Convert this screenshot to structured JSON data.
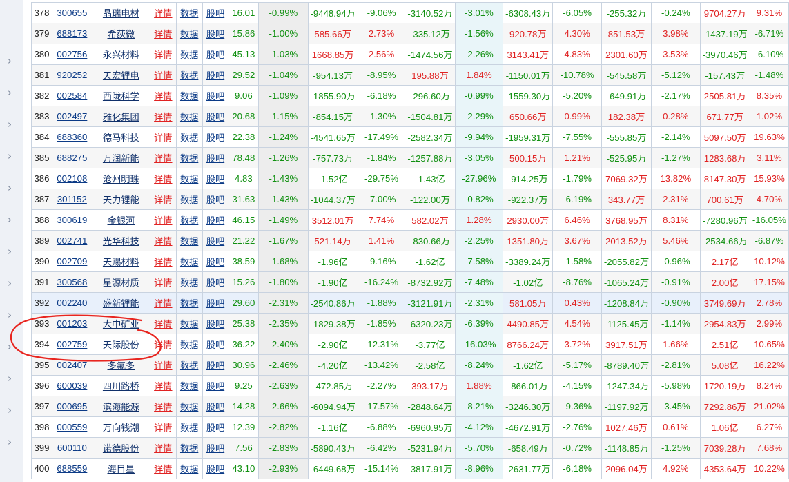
{
  "table": {
    "links": {
      "detail": "详情",
      "data": "数据",
      "forum": "股吧"
    },
    "rows": [
      {
        "rank": "378",
        "code": "300655",
        "name": "晶瑞电材",
        "price": "16.01",
        "chg": "-0.99%",
        "f1": "-9448.94万",
        "p1": "-9.06%",
        "f2": "-3140.52万",
        "p2": "-3.01%",
        "f3": "-6308.43万",
        "p3": "-6.05%",
        "f4": "-255.32万",
        "p4": "-0.24%",
        "f5": "9704.27万",
        "p5": "9.31%"
      },
      {
        "rank": "379",
        "code": "688173",
        "name": "希荻微",
        "price": "15.86",
        "chg": "-1.00%",
        "f1": "585.66万",
        "p1": "2.73%",
        "f2": "-335.12万",
        "p2": "-1.56%",
        "f3": "920.78万",
        "p3": "4.30%",
        "f4": "851.53万",
        "p4": "3.98%",
        "f5": "-1437.19万",
        "p5": "-6.71%"
      },
      {
        "rank": "380",
        "code": "002756",
        "name": "永兴材料",
        "price": "45.13",
        "chg": "-1.03%",
        "f1": "1668.85万",
        "p1": "2.56%",
        "f2": "-1474.56万",
        "p2": "-2.26%",
        "f3": "3143.41万",
        "p3": "4.83%",
        "f4": "2301.60万",
        "p4": "3.53%",
        "f5": "-3970.46万",
        "p5": "-6.10%"
      },
      {
        "rank": "381",
        "code": "920252",
        "name": "天宏锂电",
        "price": "29.52",
        "chg": "-1.04%",
        "f1": "-954.13万",
        "p1": "-8.95%",
        "f2": "195.88万",
        "p2": "1.84%",
        "f3": "-1150.01万",
        "p3": "-10.78%",
        "f4": "-545.58万",
        "p4": "-5.12%",
        "f5": "-157.43万",
        "p5": "-1.48%"
      },
      {
        "rank": "382",
        "code": "002584",
        "name": "西陇科学",
        "price": "9.06",
        "chg": "-1.09%",
        "f1": "-1855.90万",
        "p1": "-6.18%",
        "f2": "-296.60万",
        "p2": "-0.99%",
        "f3": "-1559.30万",
        "p3": "-5.20%",
        "f4": "-649.91万",
        "p4": "-2.17%",
        "f5": "2505.81万",
        "p5": "8.35%"
      },
      {
        "rank": "383",
        "code": "002497",
        "name": "雅化集团",
        "price": "20.68",
        "chg": "-1.15%",
        "f1": "-854.15万",
        "p1": "-1.30%",
        "f2": "-1504.81万",
        "p2": "-2.29%",
        "f3": "650.66万",
        "p3": "0.99%",
        "f4": "182.38万",
        "p4": "0.28%",
        "f5": "671.77万",
        "p5": "1.02%"
      },
      {
        "rank": "384",
        "code": "688360",
        "name": "德马科技",
        "price": "22.38",
        "chg": "-1.24%",
        "f1": "-4541.65万",
        "p1": "-17.49%",
        "f2": "-2582.34万",
        "p2": "-9.94%",
        "f3": "-1959.31万",
        "p3": "-7.55%",
        "f4": "-555.85万",
        "p4": "-2.14%",
        "f5": "5097.50万",
        "p5": "19.63%"
      },
      {
        "rank": "385",
        "code": "688275",
        "name": "万润新能",
        "price": "78.48",
        "chg": "-1.26%",
        "f1": "-757.73万",
        "p1": "-1.84%",
        "f2": "-1257.88万",
        "p2": "-3.05%",
        "f3": "500.15万",
        "p3": "1.21%",
        "f4": "-525.95万",
        "p4": "-1.27%",
        "f5": "1283.68万",
        "p5": "3.11%"
      },
      {
        "rank": "386",
        "code": "002108",
        "name": "沧州明珠",
        "price": "4.83",
        "chg": "-1.43%",
        "f1": "-1.52亿",
        "p1": "-29.75%",
        "f2": "-1.43亿",
        "p2": "-27.96%",
        "f3": "-914.25万",
        "p3": "-1.79%",
        "f4": "7069.32万",
        "p4": "13.82%",
        "f5": "8147.30万",
        "p5": "15.93%"
      },
      {
        "rank": "387",
        "code": "301152",
        "name": "天力锂能",
        "price": "31.63",
        "chg": "-1.43%",
        "f1": "-1044.37万",
        "p1": "-7.00%",
        "f2": "-122.00万",
        "p2": "-0.82%",
        "f3": "-922.37万",
        "p3": "-6.19%",
        "f4": "343.77万",
        "p4": "2.31%",
        "f5": "700.61万",
        "p5": "4.70%"
      },
      {
        "rank": "388",
        "code": "300619",
        "name": "金银河",
        "price": "46.15",
        "chg": "-1.49%",
        "f1": "3512.01万",
        "p1": "7.74%",
        "f2": "582.02万",
        "p2": "1.28%",
        "f3": "2930.00万",
        "p3": "6.46%",
        "f4": "3768.95万",
        "p4": "8.31%",
        "f5": "-7280.96万",
        "p5": "-16.05%"
      },
      {
        "rank": "389",
        "code": "002741",
        "name": "光华科技",
        "price": "21.22",
        "chg": "-1.67%",
        "f1": "521.14万",
        "p1": "1.41%",
        "f2": "-830.66万",
        "p2": "-2.25%",
        "f3": "1351.80万",
        "p3": "3.67%",
        "f4": "2013.52万",
        "p4": "5.46%",
        "f5": "-2534.66万",
        "p5": "-6.87%"
      },
      {
        "rank": "390",
        "code": "002709",
        "name": "天赐材料",
        "price": "38.59",
        "chg": "-1.68%",
        "f1": "-1.96亿",
        "p1": "-9.16%",
        "f2": "-1.62亿",
        "p2": "-7.58%",
        "f3": "-3389.24万",
        "p3": "-1.58%",
        "f4": "-2055.82万",
        "p4": "-0.96%",
        "f5": "2.17亿",
        "p5": "10.12%"
      },
      {
        "rank": "391",
        "code": "300568",
        "name": "星源材质",
        "price": "15.26",
        "chg": "-1.80%",
        "f1": "-1.90亿",
        "p1": "-16.24%",
        "f2": "-8732.92万",
        "p2": "-7.48%",
        "f3": "-1.02亿",
        "p3": "-8.76%",
        "f4": "-1065.24万",
        "p4": "-0.91%",
        "f5": "2.00亿",
        "p5": "17.15%"
      },
      {
        "rank": "392",
        "code": "002240",
        "name": "盛新锂能",
        "price": "29.60",
        "chg": "-2.31%",
        "f1": "-2540.86万",
        "p1": "-1.88%",
        "f2": "-3121.91万",
        "p2": "-2.31%",
        "f3": "581.05万",
        "p3": "0.43%",
        "f4": "-1208.84万",
        "p4": "-0.90%",
        "f5": "3749.69万",
        "p5": "2.78%"
      },
      {
        "rank": "393",
        "code": "001203",
        "name": "大中矿业",
        "price": "25.38",
        "chg": "-2.35%",
        "f1": "-1829.38万",
        "p1": "-1.85%",
        "f2": "-6320.23万",
        "p2": "-6.39%",
        "f3": "4490.85万",
        "p3": "4.54%",
        "f4": "-1125.45万",
        "p4": "-1.14%",
        "f5": "2954.83万",
        "p5": "2.99%"
      },
      {
        "rank": "394",
        "code": "002759",
        "name": "天际股份",
        "price": "36.22",
        "chg": "-2.40%",
        "f1": "-2.90亿",
        "p1": "-12.31%",
        "f2": "-3.77亿",
        "p2": "-16.03%",
        "f3": "8766.24万",
        "p3": "3.72%",
        "f4": "3917.51万",
        "p4": "1.66%",
        "f5": "2.51亿",
        "p5": "10.65%"
      },
      {
        "rank": "395",
        "code": "002407",
        "name": "多氟多",
        "price": "30.96",
        "chg": "-2.46%",
        "f1": "-4.20亿",
        "p1": "-13.42%",
        "f2": "-2.58亿",
        "p2": "-8.24%",
        "f3": "-1.62亿",
        "p3": "-5.17%",
        "f4": "-8789.40万",
        "p4": "-2.81%",
        "f5": "5.08亿",
        "p5": "16.22%"
      },
      {
        "rank": "396",
        "code": "600039",
        "name": "四川路桥",
        "price": "9.25",
        "chg": "-2.63%",
        "f1": "-472.85万",
        "p1": "-2.27%",
        "f2": "393.17万",
        "p2": "1.88%",
        "f3": "-866.01万",
        "p3": "-4.15%",
        "f4": "-1247.34万",
        "p4": "-5.98%",
        "f5": "1720.19万",
        "p5": "8.24%"
      },
      {
        "rank": "397",
        "code": "000695",
        "name": "滨海能源",
        "price": "14.28",
        "chg": "-2.66%",
        "f1": "-6094.94万",
        "p1": "-17.57%",
        "f2": "-2848.64万",
        "p2": "-8.21%",
        "f3": "-3246.30万",
        "p3": "-9.36%",
        "f4": "-1197.92万",
        "p4": "-3.45%",
        "f5": "7292.86万",
        "p5": "21.02%"
      },
      {
        "rank": "398",
        "code": "000559",
        "name": "万向钱潮",
        "price": "12.39",
        "chg": "-2.82%",
        "f1": "-1.16亿",
        "p1": "-6.88%",
        "f2": "-6960.95万",
        "p2": "-4.12%",
        "f3": "-4672.91万",
        "p3": "-2.76%",
        "f4": "1027.46万",
        "p4": "0.61%",
        "f5": "1.06亿",
        "p5": "6.27%"
      },
      {
        "rank": "399",
        "code": "600110",
        "name": "诺德股份",
        "price": "7.56",
        "chg": "-2.83%",
        "f1": "-5890.43万",
        "p1": "-6.42%",
        "f2": "-5231.94万",
        "p2": "-5.70%",
        "f3": "-658.49万",
        "p3": "-0.72%",
        "f4": "-1148.85万",
        "p4": "-1.25%",
        "f5": "7039.28万",
        "p5": "7.68%"
      },
      {
        "rank": "400",
        "code": "688559",
        "name": "海目星",
        "price": "43.10",
        "chg": "-2.93%",
        "f1": "-6449.68万",
        "p1": "-15.14%",
        "f2": "-3817.91万",
        "p2": "-8.96%",
        "f3": "-2631.77万",
        "p3": "-6.18%",
        "f4": "2096.04万",
        "p4": "4.92%",
        "f5": "4353.64万",
        "p5": "10.22%"
      }
    ]
  },
  "sidebar": {
    "chevron_glyph": "›",
    "count": 13
  },
  "annotation": {
    "color": "#e8251f",
    "note": "hand-drawn red circle around rows 393-394"
  },
  "colors": {
    "up": "#e02222",
    "down": "#119011",
    "link": "#0b3a86",
    "border": "#c9d3e0"
  }
}
